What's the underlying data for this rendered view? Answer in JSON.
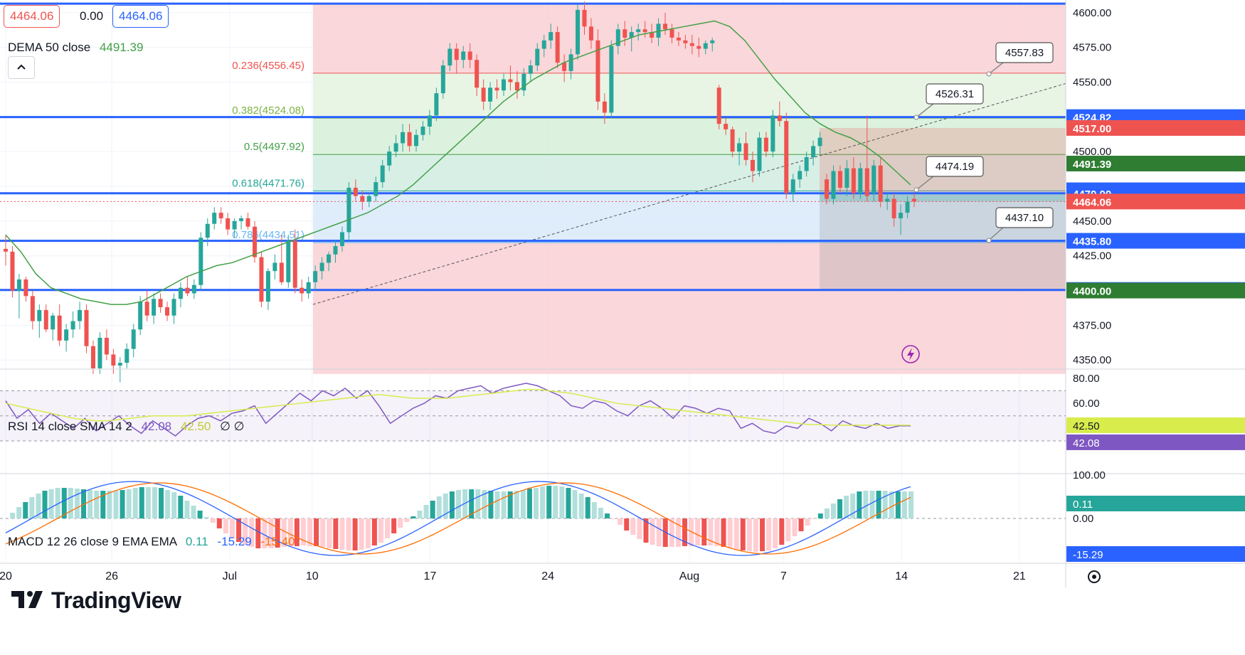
{
  "header": {
    "bid": "4464.06",
    "spread": "0.00",
    "ask": "4464.06",
    "dema_label": "DEMA 50 close",
    "dema_value": "4491.39"
  },
  "rsi_header": {
    "label": "RSI 14 close SMA 14 2",
    "rsi_value": "42.08",
    "sma_value": "42.50",
    "extra": "∅ ∅"
  },
  "macd_header": {
    "label": "MACD 12 26 close 9 EMA EMA",
    "hist": "0.11",
    "macd": "-15.29",
    "signal": "-15.40"
  },
  "colors": {
    "up": "#26a69a",
    "down": "#ef5350",
    "level_line": "#2962ff",
    "dema": "#43a047",
    "rsi": "#7e57c2",
    "rsi_sma": "#d8ec4c",
    "macd": "#2962ff",
    "signal": "#ff6d00",
    "fib_red": "#f8d7da",
    "fib_green": "#dff0d8",
    "fib_blue": "#dbeafe"
  },
  "logo": {
    "text": "TradingView",
    "icon": "tradingview-logo-icon"
  },
  "alert_icon": "lightning-icon",
  "settings_icon": "gear-icon",
  "chart_data": {
    "type": "candlestick",
    "instrument_price_axis": [
      "4600.00",
      "4575.00",
      "4550.00",
      "4525.00",
      "4500.00",
      "4475.00",
      "4450.00",
      "4425.00",
      "4400.00",
      "4375.00",
      "4350.00"
    ],
    "ylim": [
      4345,
      4605
    ],
    "x_axis_ticks": [
      {
        "label": "20",
        "t": 0
      },
      {
        "label": "26",
        "t": 18
      },
      {
        "label": "Jul",
        "t": 38
      },
      {
        "label": "10",
        "t": 52
      },
      {
        "label": "17",
        "t": 72
      },
      {
        "label": "24",
        "t": 92
      },
      {
        "label": "Aug",
        "t": 116
      },
      {
        "label": "7",
        "t": 132
      },
      {
        "label": "14",
        "t": 152
      },
      {
        "label": "21",
        "t": 172
      }
    ],
    "horizontal_levels": [
      4524.82,
      4470.0,
      4435.8,
      4400.42,
      4606.5
    ],
    "fibonacci": [
      {
        "label": "0.236(4556.45)",
        "value": 4556.45
      },
      {
        "label": "0.382(4524.08)",
        "value": 4524.08
      },
      {
        "label": "0.5(4497.92)",
        "value": 4497.92
      },
      {
        "label": "0.618(4471.76)",
        "value": 4471.76
      },
      {
        "label": "0.786(4434.51)",
        "value": 4434.51
      }
    ],
    "price_callouts": [
      "4557.83",
      "4526.31",
      "4474.19",
      "4437.10"
    ],
    "axis_badges": [
      {
        "value": "4524.82",
        "kind": "level"
      },
      {
        "value": "4517.00",
        "kind": "red"
      },
      {
        "value": "4491.39",
        "kind": "green"
      },
      {
        "value": "4472.15",
        "kind": "level"
      },
      {
        "value": "4470.00",
        "kind": "level"
      },
      {
        "value": "4464.06",
        "kind": "red"
      },
      {
        "value": "4435.80",
        "kind": "level"
      },
      {
        "value": "4400.42",
        "kind": "level"
      },
      {
        "value": "4400.00",
        "kind": "green"
      }
    ],
    "candles": [
      [
        4430,
        4440,
        4418,
        4428
      ],
      [
        4428,
        4432,
        4395,
        4400
      ],
      [
        4400,
        4412,
        4380,
        4408
      ],
      [
        4408,
        4410,
        4392,
        4396
      ],
      [
        4396,
        4400,
        4372,
        4378
      ],
      [
        4378,
        4390,
        4366,
        4386
      ],
      [
        4386,
        4390,
        4370,
        4372
      ],
      [
        4372,
        4384,
        4364,
        4382
      ],
      [
        4382,
        4390,
        4360,
        4364
      ],
      [
        4364,
        4376,
        4356,
        4372
      ],
      [
        4372,
        4385,
        4366,
        4378
      ],
      [
        4378,
        4392,
        4372,
        4386
      ],
      [
        4386,
        4390,
        4355,
        4360
      ],
      [
        4360,
        4364,
        4340,
        4344
      ],
      [
        4344,
        4370,
        4340,
        4366
      ],
      [
        4366,
        4372,
        4350,
        4354
      ],
      [
        4354,
        4358,
        4340,
        4346
      ],
      [
        4346,
        4352,
        4334,
        4348
      ],
      [
        4348,
        4362,
        4344,
        4358
      ],
      [
        4358,
        4376,
        4352,
        4372
      ],
      [
        4372,
        4396,
        4368,
        4392
      ],
      [
        4392,
        4400,
        4378,
        4382
      ],
      [
        4382,
        4398,
        4376,
        4394
      ],
      [
        4394,
        4398,
        4384,
        4388
      ],
      [
        4388,
        4392,
        4378,
        4382
      ],
      [
        4382,
        4398,
        4376,
        4394
      ],
      [
        4394,
        4406,
        4388,
        4402
      ],
      [
        4402,
        4410,
        4396,
        4398
      ],
      [
        4398,
        4408,
        4394,
        4404
      ],
      [
        4404,
        4442,
        4400,
        4438
      ],
      [
        4438,
        4452,
        4432,
        4448
      ],
      [
        4448,
        4460,
        4444,
        4456
      ],
      [
        4456,
        4460,
        4448,
        4452
      ],
      [
        4452,
        4456,
        4440,
        4444
      ],
      [
        4444,
        4452,
        4438,
        4450
      ],
      [
        4450,
        4454,
        4444,
        4452
      ],
      [
        4452,
        4456,
        4444,
        4446
      ],
      [
        4446,
        4450,
        4420,
        4424
      ],
      [
        4424,
        4428,
        4388,
        4392
      ],
      [
        4392,
        4416,
        4386,
        4414
      ],
      [
        4414,
        4426,
        4408,
        4420
      ],
      [
        4420,
        4440,
        4404,
        4406
      ],
      [
        4406,
        4440,
        4402,
        4436
      ],
      [
        4436,
        4444,
        4398,
        4402
      ],
      [
        4402,
        4408,
        4392,
        4398
      ],
      [
        4398,
        4410,
        4394,
        4406
      ],
      [
        4406,
        4418,
        4400,
        4414
      ],
      [
        4414,
        4424,
        4408,
        4420
      ],
      [
        4420,
        4428,
        4414,
        4426
      ],
      [
        4426,
        4436,
        4420,
        4432
      ],
      [
        4432,
        4446,
        4428,
        4442
      ],
      [
        4442,
        4478,
        4436,
        4474
      ],
      [
        4474,
        4480,
        4464,
        4468
      ],
      [
        4468,
        4472,
        4458,
        4464
      ],
      [
        4464,
        4470,
        4460,
        4468
      ],
      [
        4468,
        4482,
        4464,
        4478
      ],
      [
        4478,
        4494,
        4474,
        4490
      ],
      [
        4490,
        4504,
        4486,
        4500
      ],
      [
        4500,
        4512,
        4496,
        4506
      ],
      [
        4506,
        4520,
        4500,
        4514
      ],
      [
        4514,
        4520,
        4500,
        4504
      ],
      [
        4504,
        4516,
        4500,
        4512
      ],
      [
        4512,
        4522,
        4508,
        4518
      ],
      [
        4518,
        4530,
        4512,
        4526
      ],
      [
        4526,
        4546,
        4522,
        4542
      ],
      [
        4542,
        4566,
        4538,
        4562
      ],
      [
        4562,
        4578,
        4558,
        4574
      ],
      [
        4574,
        4578,
        4556,
        4566
      ],
      [
        4566,
        4576,
        4560,
        4572
      ],
      [
        4572,
        4578,
        4560,
        4566
      ],
      [
        4566,
        4570,
        4540,
        4546
      ],
      [
        4546,
        4552,
        4530,
        4536
      ],
      [
        4536,
        4550,
        4530,
        4546
      ],
      [
        4546,
        4552,
        4538,
        4544
      ],
      [
        4544,
        4556,
        4540,
        4552
      ],
      [
        4552,
        4562,
        4544,
        4550
      ],
      [
        4550,
        4558,
        4538,
        4544
      ],
      [
        4544,
        4560,
        4540,
        4556
      ],
      [
        4556,
        4566,
        4550,
        4562
      ],
      [
        4562,
        4578,
        4558,
        4574
      ],
      [
        4574,
        4584,
        4568,
        4580
      ],
      [
        4580,
        4592,
        4574,
        4586
      ],
      [
        4586,
        4590,
        4560,
        4564
      ],
      [
        4564,
        4570,
        4550,
        4558
      ],
      [
        4558,
        4574,
        4552,
        4570
      ],
      [
        4570,
        4606,
        4566,
        4602
      ],
      [
        4602,
        4608,
        4584,
        4590
      ],
      [
        4590,
        4596,
        4574,
        4580
      ],
      [
        4580,
        4588,
        4530,
        4536
      ],
      [
        4536,
        4542,
        4520,
        4528
      ],
      [
        4528,
        4580,
        4524,
        4576
      ],
      [
        4576,
        4592,
        4570,
        4588
      ],
      [
        4588,
        4594,
        4576,
        4582
      ],
      [
        4582,
        4590,
        4572,
        4586
      ],
      [
        4586,
        4592,
        4580,
        4588
      ],
      [
        4588,
        4594,
        4582,
        4586
      ],
      [
        4586,
        4592,
        4578,
        4582
      ],
      [
        4582,
        4596,
        4576,
        4592
      ],
      [
        4592,
        4600,
        4584,
        4588
      ],
      [
        4588,
        4592,
        4578,
        4582
      ],
      [
        4582,
        4586,
        4576,
        4580
      ],
      [
        4580,
        4584,
        4574,
        4578
      ],
      [
        4578,
        4584,
        4570,
        4576
      ],
      [
        4576,
        4582,
        4568,
        4574
      ],
      [
        4574,
        4580,
        4570,
        4578
      ],
      [
        4578,
        4582,
        4572,
        4580
      ],
      [
        4546,
        4548,
        4516,
        4520
      ],
      [
        4520,
        4524,
        4512,
        4516
      ],
      [
        4516,
        4518,
        4496,
        4500
      ],
      [
        4500,
        4510,
        4490,
        4506
      ],
      [
        4506,
        4514,
        4490,
        4494
      ],
      [
        4494,
        4500,
        4478,
        4486
      ],
      [
        4486,
        4514,
        4482,
        4510
      ],
      [
        4510,
        4514,
        4496,
        4500
      ],
      [
        4500,
        4530,
        4496,
        4526
      ],
      [
        4526,
        4536,
        4518,
        4522
      ],
      [
        4522,
        4528,
        4466,
        4470
      ],
      [
        4470,
        4484,
        4464,
        4480
      ],
      [
        4480,
        4490,
        4474,
        4486
      ],
      [
        4486,
        4500,
        4482,
        4496
      ],
      [
        4496,
        4508,
        4490,
        4504
      ],
      [
        4504,
        4514,
        4498,
        4510
      ],
      [
        4480,
        4484,
        4462,
        4466
      ],
      [
        4466,
        4490,
        4462,
        4486
      ],
      [
        4486,
        4490,
        4470,
        4474
      ],
      [
        4474,
        4494,
        4468,
        4488
      ],
      [
        4488,
        4496,
        4466,
        4470
      ],
      [
        4470,
        4492,
        4466,
        4488
      ],
      [
        4488,
        4526,
        4464,
        4468
      ],
      [
        4470,
        4494,
        4464,
        4490
      ],
      [
        4490,
        4496,
        4460,
        4464
      ],
      [
        4464,
        4470,
        4458,
        4466
      ],
      [
        4466,
        4470,
        4446,
        4452
      ],
      [
        4452,
        4462,
        4440,
        4456
      ],
      [
        4456,
        4468,
        4452,
        4464
      ],
      [
        4466,
        4470,
        4460,
        4464
      ]
    ],
    "dema_50": [
      4440,
      4428,
      4412,
      4402,
      4398,
      4394,
      4392,
      4390,
      4390,
      4392,
      4398,
      4404,
      4410,
      4414,
      4418,
      4420,
      4424,
      4428,
      4432,
      4436,
      4440,
      4444,
      4448,
      4452,
      4456,
      4462,
      4468,
      4476,
      4486,
      4496,
      4506,
      4516,
      4526,
      4536,
      4544,
      4552,
      4558,
      4564,
      4568,
      4572,
      4576,
      4580,
      4584,
      4586,
      4588,
      4590,
      4592,
      4594,
      4590,
      4580,
      4566,
      4552,
      4540,
      4528,
      4520,
      4514,
      4510,
      4504,
      4496,
      4486,
      4476
    ],
    "rsi": [
      62,
      48,
      55,
      44,
      52,
      46,
      40,
      48,
      38,
      44,
      50,
      42,
      36,
      46,
      40,
      34,
      42,
      48,
      50,
      46,
      52,
      54,
      58,
      44,
      52,
      60,
      68,
      62,
      70,
      66,
      72,
      64,
      70,
      58,
      44,
      50,
      56,
      60,
      66,
      64,
      70,
      72,
      74,
      68,
      72,
      74,
      76,
      74,
      70,
      66,
      58,
      56,
      62,
      60,
      54,
      50,
      58,
      62,
      56,
      48,
      58,
      56,
      52,
      56,
      54,
      40,
      44,
      38,
      36,
      42,
      40,
      48,
      44,
      38,
      46,
      42,
      40,
      44,
      40,
      42,
      42
    ],
    "rsi_sma": [
      60,
      58,
      56,
      54,
      52,
      50,
      48,
      47,
      46,
      46,
      47,
      48,
      49,
      50,
      50,
      50,
      50,
      51,
      52,
      53,
      54,
      55,
      56,
      57,
      58,
      59,
      60,
      61,
      62,
      63,
      64,
      65,
      66,
      67,
      66,
      65,
      64,
      64,
      64,
      64,
      65,
      66,
      67,
      68,
      69,
      70,
      71,
      71,
      70,
      69,
      68,
      66,
      64,
      62,
      60,
      59,
      58,
      57,
      56,
      55,
      54,
      53,
      52,
      51,
      50,
      49,
      48,
      47,
      46,
      45,
      44,
      43,
      43,
      42.5,
      42.5,
      42.5,
      42.5,
      42.5,
      42.5,
      42.5,
      42.5
    ]
  }
}
